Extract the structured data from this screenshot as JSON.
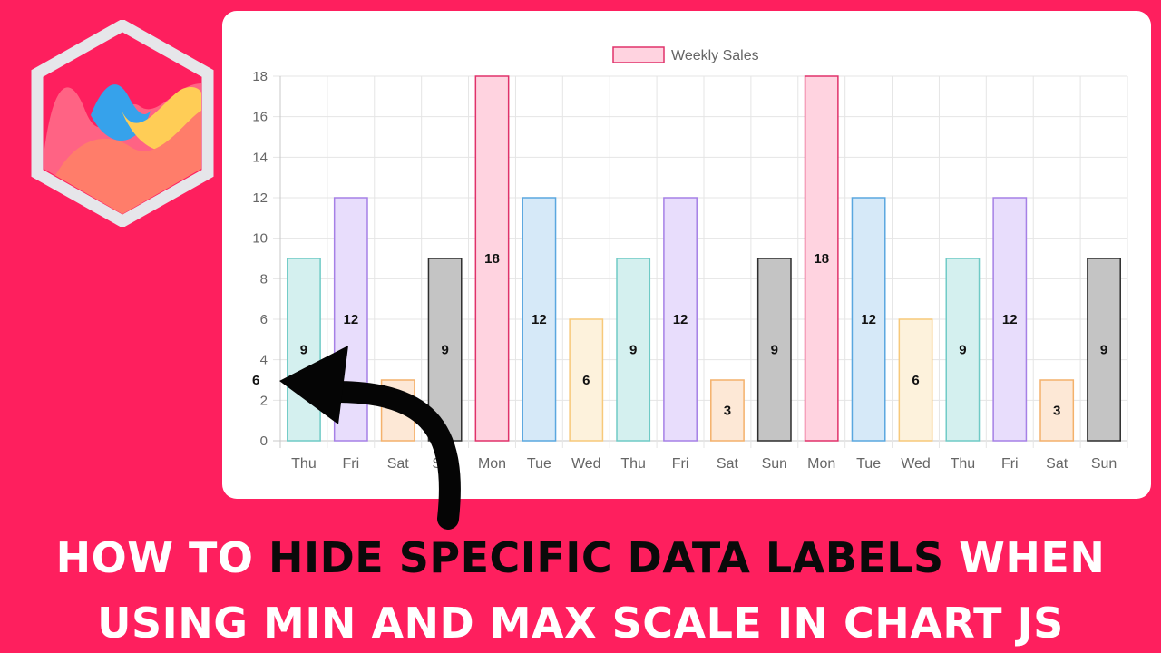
{
  "headline": {
    "line1_pre": "HOW TO ",
    "line1_highlight": "HIDE SPECIFIC DATA LABELS",
    "line1_post": " WHEN",
    "line2": "USING MIN AND MAX SCALE IN CHART JS"
  },
  "colors": {
    "background": "#fe1f5e",
    "highlight_text": "#0a0a0a",
    "headline_text": "#ffffff"
  },
  "logo": {
    "icon": "chartjs-logo-icon"
  },
  "arrow": {
    "icon": "curved-arrow-icon"
  },
  "chart_data": {
    "type": "bar",
    "categories": [
      "Thu",
      "Fri",
      "Sat",
      "Sun",
      "Mon",
      "Tue",
      "Wed",
      "Thu",
      "Fri",
      "Sat",
      "Sun",
      "Mon",
      "Tue",
      "Wed",
      "Thu",
      "Fri",
      "Sat",
      "Sun"
    ],
    "series": [
      {
        "name": "Weekly Sales",
        "values": [
          9,
          12,
          3,
          9,
          18,
          12,
          6,
          9,
          12,
          3,
          9,
          18,
          12,
          6,
          9,
          12,
          3,
          9
        ]
      }
    ],
    "data_labels": [
      "9",
      "12",
      "",
      "9",
      "18",
      "12",
      "6",
      "9",
      "12",
      "3",
      "9",
      "18",
      "12",
      "6",
      "9",
      "12",
      "3",
      "9"
    ],
    "stray_label": "6",
    "yticks": [
      "0",
      "2",
      "4",
      "6",
      "8",
      "10",
      "12",
      "14",
      "16",
      "18"
    ],
    "ylim": [
      0,
      18
    ],
    "grid": true,
    "legend_position": "top-center",
    "bar_fill_colors": [
      "#d4f0ef",
      "#e8ddfc",
      "#fde8d6",
      "#c4c4c4",
      "#ffd3e0",
      "#d6e9f8",
      "#fdf2dc"
    ],
    "bar_border_colors": [
      "#6fcac6",
      "#a680e6",
      "#f4b16b",
      "#2e2e2e",
      "#e0326a",
      "#5aa7df",
      "#f7c97a"
    ],
    "legend_fill": "#ffd3e0",
    "legend_border": "#e0326a"
  }
}
